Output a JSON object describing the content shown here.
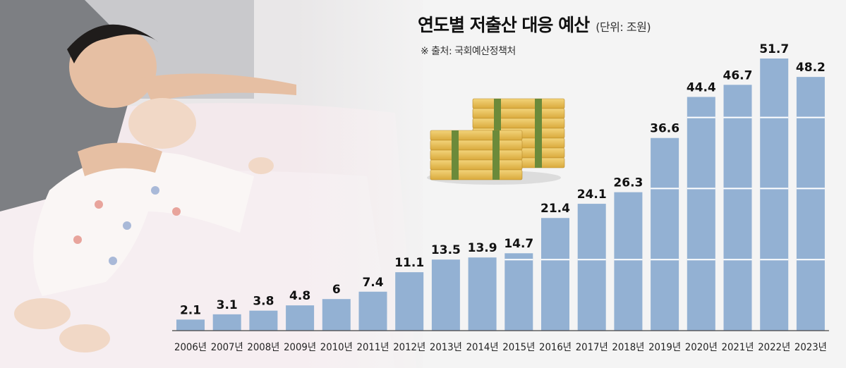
{
  "chart_data": {
    "type": "bar",
    "title": "연도별 저출산 대응 예산",
    "unit": "(단위: 조원)",
    "source": "※ 출처: 국회예산정책처",
    "categories": [
      "2006년",
      "2007년",
      "2008년",
      "2009년",
      "2010년",
      "2011년",
      "2012년",
      "2013년",
      "2014년",
      "2015년",
      "2016년",
      "2017년",
      "2018년",
      "2019년",
      "2020년",
      "2021년",
      "2022년",
      "2023년"
    ],
    "values": [
      2.1,
      3.1,
      3.8,
      4.8,
      6,
      7.4,
      11.1,
      13.5,
      13.9,
      14.7,
      21.4,
      24.1,
      26.3,
      36.6,
      44.4,
      46.7,
      51.7,
      48.2
    ],
    "value_labels": [
      "2.1",
      "3.1",
      "3.8",
      "4.8",
      "6",
      "7.4",
      "11.1",
      "13.5",
      "13.9",
      "14.7",
      "21.4",
      "24.1",
      "26.3",
      "36.6",
      "44.4",
      "46.7",
      "51.7",
      "48.2"
    ],
    "ylim": [
      0,
      51.7
    ],
    "grid": false,
    "colors": {
      "bar": "#93b1d3",
      "segment_line": "#ffffff",
      "label": "#111111"
    }
  }
}
